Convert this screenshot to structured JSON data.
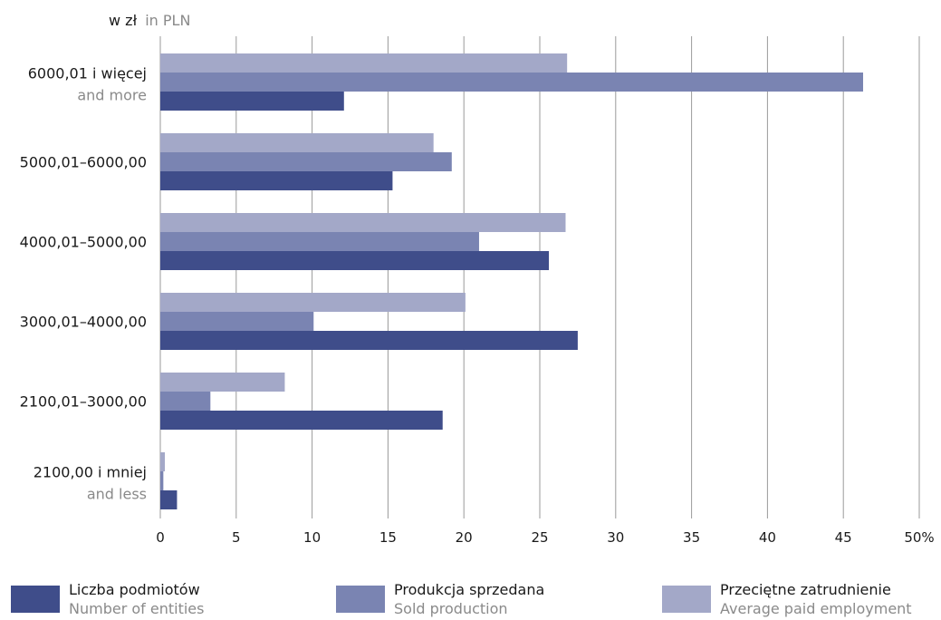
{
  "chart_data": {
    "type": "bar",
    "orientation": "horizontal",
    "unit_label_pl": "w zł",
    "unit_label_en": "in PLN",
    "categories": [
      {
        "pl": "6000,01 i więcej",
        "en": "and more"
      },
      {
        "pl": "5000,01–6000,00",
        "en": ""
      },
      {
        "pl": "4000,01–5000,00",
        "en": ""
      },
      {
        "pl": "3000,01–4000,00",
        "en": ""
      },
      {
        "pl": "2100,01–3000,00",
        "en": ""
      },
      {
        "pl": "2100,00 i mniej",
        "en": "and less"
      }
    ],
    "series": [
      {
        "name_pl": "Przeciętne zatrudnienie",
        "name_en": "Average paid employment",
        "color": "#a3a8c8",
        "values": [
          26.8,
          18.0,
          26.7,
          20.1,
          8.2,
          0.3
        ]
      },
      {
        "name_pl": "Produkcja sprzedana",
        "name_en": "Sold production",
        "color": "#7a84b2",
        "values": [
          46.3,
          19.2,
          21.0,
          10.1,
          3.3,
          0.2
        ]
      },
      {
        "name_pl": "Liczba podmiotów",
        "name_en": "Number of entities",
        "color": "#3f4d8a",
        "values": [
          12.1,
          15.3,
          25.6,
          27.5,
          18.6,
          1.1
        ]
      }
    ],
    "xlim": [
      0,
      50
    ],
    "x_ticks": [
      "0",
      "5",
      "10",
      "15",
      "20",
      "25",
      "30",
      "35",
      "40",
      "45",
      "50%"
    ],
    "grid": true,
    "legend_position": "bottom"
  }
}
